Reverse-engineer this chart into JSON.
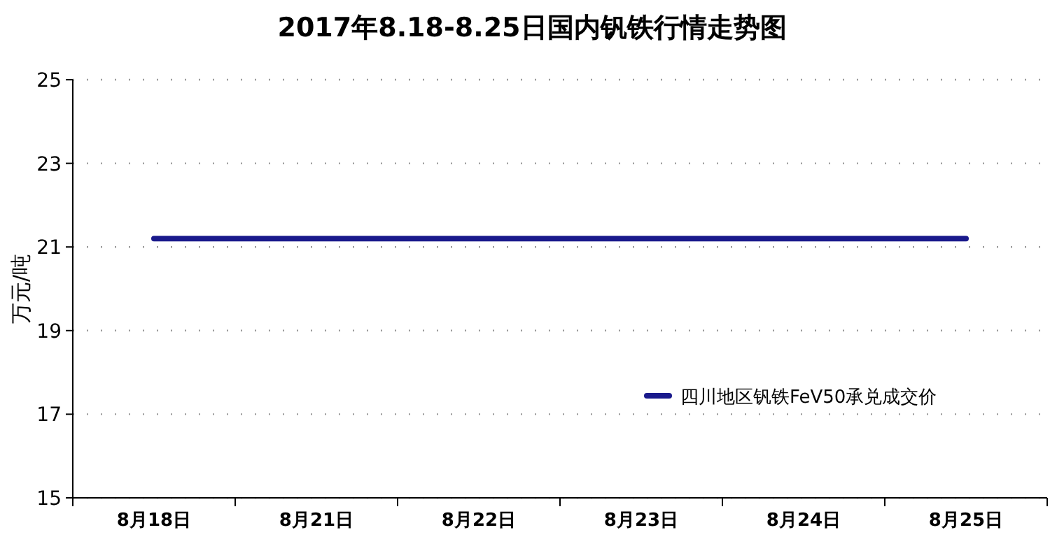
{
  "chart_data": {
    "type": "line",
    "title": "2017年8.18-8.25日国内钒铁行情走势图",
    "ylabel": "万元/吨",
    "categories": [
      "8月18日",
      "8月21日",
      "8月22日",
      "8月23日",
      "8月24日",
      "8月25日"
    ],
    "series": [
      {
        "name": "四川地区钒铁FeV50承兑成交价",
        "color": "#1a1a8c",
        "values": [
          21.2,
          21.2,
          21.2,
          21.2,
          21.2,
          21.2
        ]
      }
    ],
    "ylim": [
      15,
      25
    ],
    "yticks": [
      15,
      17,
      19,
      21,
      23,
      25
    ],
    "grid": "y",
    "legend": "right",
    "marker": "none",
    "line_style": "solid"
  }
}
